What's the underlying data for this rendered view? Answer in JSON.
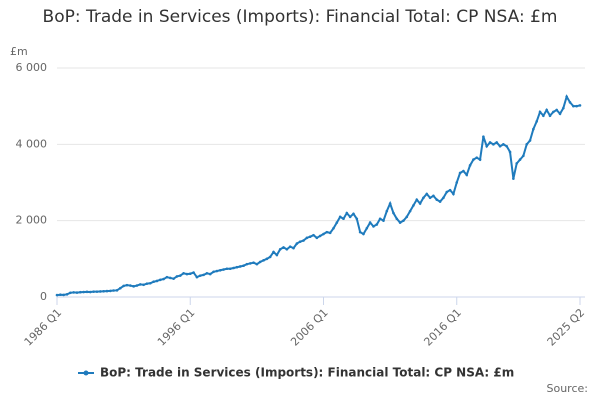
{
  "chart_data": {
    "type": "line",
    "title": "BoP: Trade in Services (Imports): Financial Total: CP NSA: £m",
    "y_label": "£m",
    "source": "Source:",
    "categories": [
      "1986 Q1",
      null,
      null,
      null,
      null,
      null,
      null,
      null,
      null,
      null,
      null,
      null,
      null,
      null,
      null,
      null,
      null,
      null,
      null,
      null,
      null,
      null,
      null,
      null,
      null,
      null,
      null,
      null,
      null,
      null,
      null,
      null,
      null,
      null,
      null,
      null,
      null,
      null,
      null,
      null,
      "1996 Q1",
      null,
      null,
      null,
      null,
      null,
      null,
      null,
      null,
      null,
      null,
      null,
      null,
      null,
      null,
      null,
      null,
      null,
      null,
      null,
      null,
      null,
      null,
      null,
      null,
      null,
      null,
      null,
      null,
      null,
      null,
      null,
      null,
      null,
      null,
      null,
      null,
      null,
      null,
      null,
      "2006 Q1",
      null,
      null,
      null,
      null,
      null,
      null,
      null,
      null,
      null,
      null,
      null,
      null,
      null,
      null,
      null,
      null,
      null,
      null,
      null,
      null,
      null,
      null,
      null,
      null,
      null,
      null,
      null,
      null,
      null,
      null,
      null,
      null,
      null,
      null,
      null,
      null,
      null,
      null,
      null,
      "2016 Q1",
      null,
      null,
      null,
      null,
      null,
      null,
      null,
      null,
      null,
      null,
      null,
      null,
      null,
      null,
      null,
      null,
      null,
      null,
      null,
      null,
      null,
      null,
      null,
      null,
      null,
      null,
      null,
      null,
      null,
      null,
      null,
      null,
      null,
      null,
      null,
      null,
      "2025 Q2"
    ],
    "series": [
      {
        "name": "BoP: Trade in Services (Imports): Financial Total: CP NSA: £m",
        "color": "#1f7bbd",
        "values": [
          50,
          60,
          55,
          70,
          110,
          120,
          115,
          125,
          130,
          135,
          130,
          140,
          140,
          145,
          150,
          155,
          160,
          170,
          175,
          230,
          290,
          310,
          300,
          280,
          300,
          330,
          320,
          350,
          360,
          400,
          420,
          450,
          470,
          520,
          500,
          480,
          540,
          560,
          620,
          600,
          610,
          640,
          520,
          560,
          580,
          620,
          600,
          660,
          680,
          700,
          720,
          740,
          740,
          760,
          780,
          800,
          820,
          860,
          880,
          900,
          860,
          920,
          960,
          1000,
          1050,
          1180,
          1100,
          1250,
          1300,
          1250,
          1320,
          1280,
          1400,
          1450,
          1480,
          1550,
          1580,
          1620,
          1550,
          1600,
          1650,
          1700,
          1680,
          1800,
          1950,
          2100,
          2050,
          2200,
          2100,
          2180,
          2050,
          1700,
          1650,
          1800,
          1950,
          1850,
          1900,
          2050,
          2000,
          2250,
          2450,
          2200,
          2050,
          1950,
          2000,
          2100,
          2250,
          2400,
          2550,
          2450,
          2600,
          2700,
          2600,
          2650,
          2550,
          2500,
          2600,
          2750,
          2800,
          2700,
          3000,
          3250,
          3300,
          3200,
          3450,
          3600,
          3650,
          3600,
          4200,
          3950,
          4050,
          4000,
          4050,
          3950,
          4000,
          3950,
          3800,
          3100,
          3500,
          3600,
          3700,
          4000,
          4100,
          4400,
          4600,
          4850,
          4750,
          4900,
          4750,
          4850,
          4900,
          4800,
          4950,
          5250,
          5100,
          5000,
          5000,
          5020
        ]
      }
    ],
    "ylim": [
      0,
      6000
    ],
    "yticks": [
      0,
      {
        "value": 2000,
        "label": "2 000"
      },
      {
        "value": 4000,
        "label": "4 000"
      },
      {
        "value": 6000,
        "label": "6 000"
      }
    ],
    "grid": true
  }
}
